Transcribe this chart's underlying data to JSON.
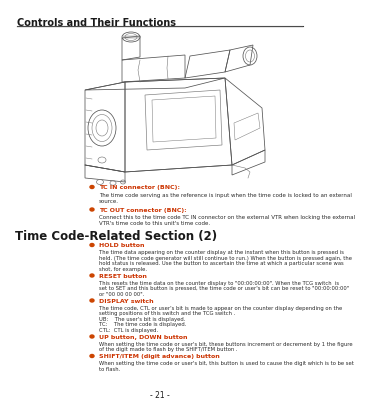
{
  "title": "Controls and Their Functions",
  "page_number": "- 21 -",
  "background_color": "#ffffff",
  "title_color": "#1a1a1a",
  "text_color": "#1a1a1a",
  "body_text_color": "#2a2a2a",
  "bullet_color": "#cc4400",
  "label_color": "#cc3300",
  "section_heading": "Time Code-Related Section (2)",
  "items": [
    {
      "label": "TC IN connector (BNC):",
      "body": "The time code serving as the reference is input when the time code is locked to an external\nsource."
    },
    {
      "label": "TC OUT connector (BNC):",
      "body": "Connect this to the time code TC IN connector on the external VTR when locking the external\nVTR's time code to this unit's time code."
    }
  ],
  "section2_items": [
    {
      "label": "HOLD button",
      "body": "The time data appearing on the counter display at the instant when this button is pressed is\nheld. (The time code generator will still continue to run.) When the button is pressed again, the\nhold status is released. Use the button to ascertain the time at which a particular scene was\nshot, for example."
    },
    {
      "label": "RESET button",
      "body": "This resets the time data on the counter display to \"00:00:00:00\". When the TCG switch  is\nset to SET and this button is pressed, the time code or user's bit can be reset to \"00:00:00:00\"\nor \"00 00 00 00\"."
    },
    {
      "label": "DISPLAY switch",
      "body": "The time code, CTL or user's bit is made to appear on the counter display depending on the\nsetting positions of this switch and the TCG switch .\nUB:    The user's bit is displayed.\nTC:    The time code is displayed.\nCTL:  CTL is displayed."
    },
    {
      "label": "UP button, DOWN button",
      "body": "When setting the time code or user's bit, these buttons increment or decrement by 1 the figure\nof the digit made to flash by the SHIFT/ITEM button ."
    },
    {
      "label": "SHIFT/ITEM (digit advance) button",
      "body": "When setting the time code or user's bit, this button is used to cause the digit which is to be set\nto flash."
    }
  ]
}
